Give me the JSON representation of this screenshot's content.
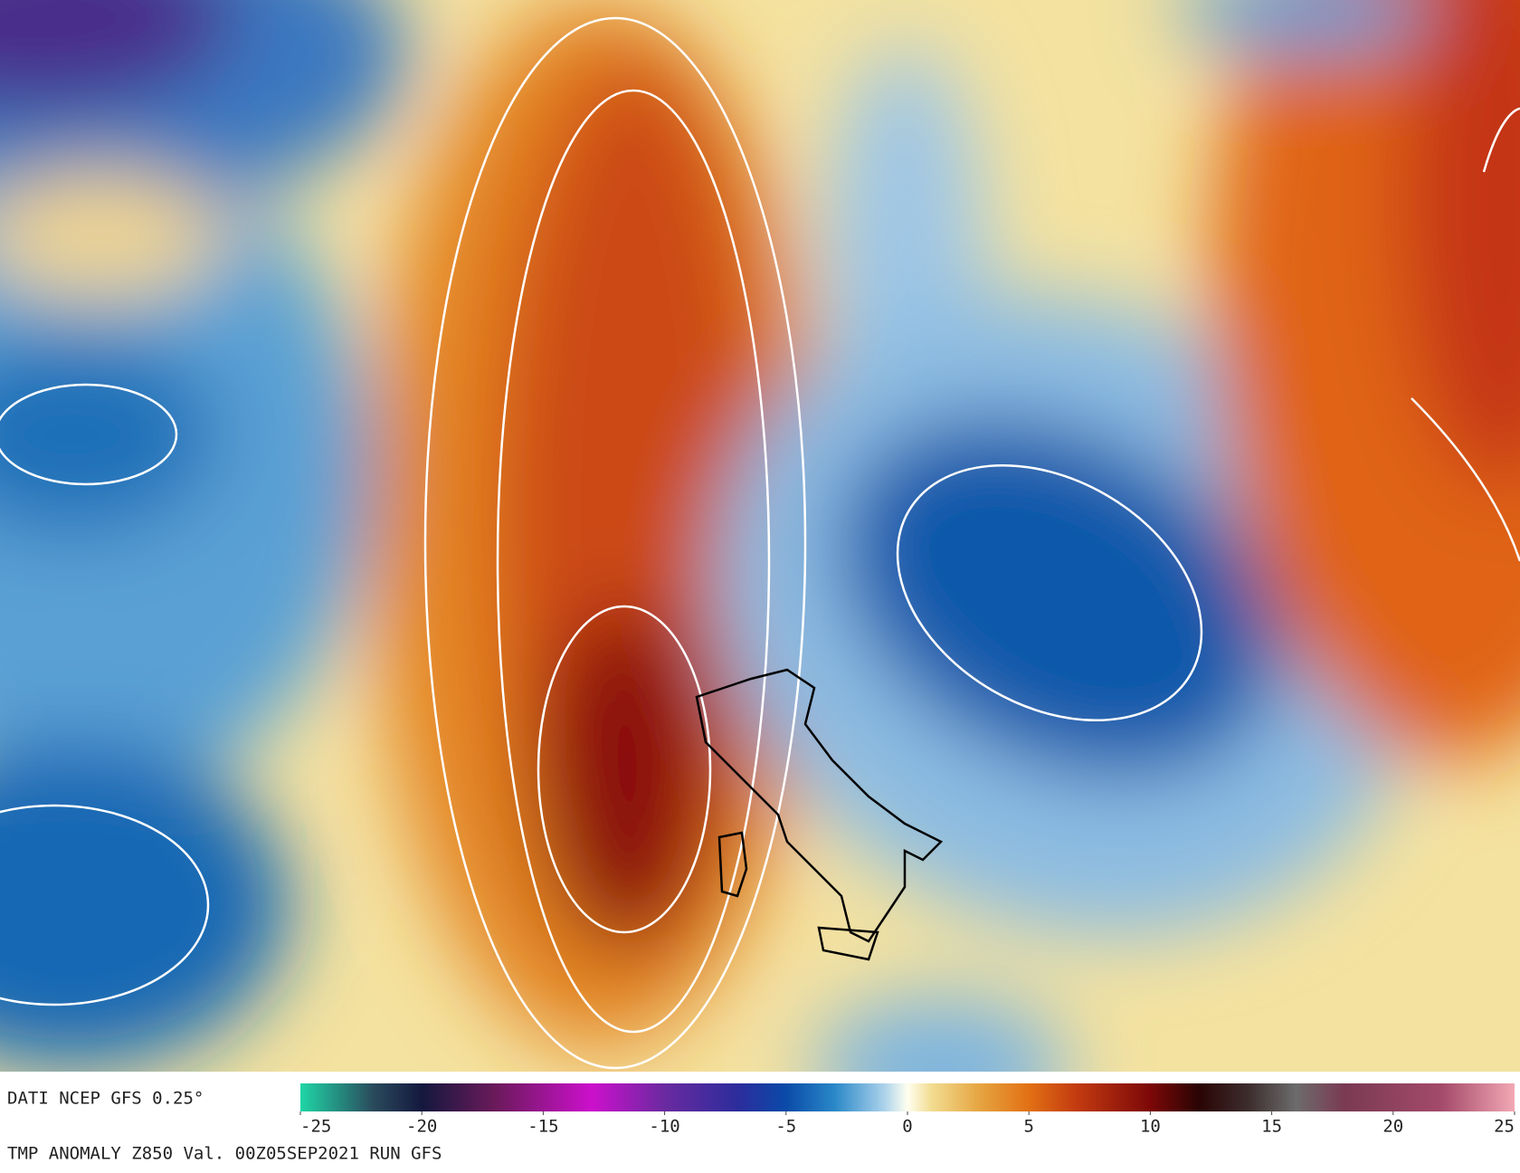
{
  "header": {
    "source": "DATI NCEP GFS 0.25°"
  },
  "footer": {
    "caption": "TMP ANOMALY Z850 Val. 00Z05SEP2021 RUN GFS"
  },
  "colorbar": {
    "range": [
      -25,
      25
    ],
    "ticks": [
      -25,
      -20,
      -15,
      -10,
      -5,
      0,
      5,
      10,
      15,
      20,
      25
    ],
    "stops": [
      {
        "value": -25,
        "color": "#1fd6a6"
      },
      {
        "value": -22,
        "color": "#2a4a5c"
      },
      {
        "value": -20,
        "color": "#14183e"
      },
      {
        "value": -17,
        "color": "#6a1a5a"
      },
      {
        "value": -13,
        "color": "#cc10cc"
      },
      {
        "value": -10,
        "color": "#6a2aa0"
      },
      {
        "value": -7,
        "color": "#2c2c9c"
      },
      {
        "value": -5,
        "color": "#0a4aa8"
      },
      {
        "value": -3,
        "color": "#2a88c8"
      },
      {
        "value": -1,
        "color": "#a8d0ea"
      },
      {
        "value": 0,
        "color": "#fffff0"
      },
      {
        "value": 1,
        "color": "#f2dc90"
      },
      {
        "value": 3,
        "color": "#e6a440"
      },
      {
        "value": 5,
        "color": "#e27014"
      },
      {
        "value": 7,
        "color": "#c23a10"
      },
      {
        "value": 10,
        "color": "#7c0808"
      },
      {
        "value": 12,
        "color": "#2a0404"
      },
      {
        "value": 14,
        "color": "#3c2c2c"
      },
      {
        "value": 16,
        "color": "#6c6c6c"
      },
      {
        "value": 18,
        "color": "#7a3a52"
      },
      {
        "value": 22,
        "color": "#a44a6a"
      },
      {
        "value": 25,
        "color": "#f2a8b4"
      }
    ]
  }
}
